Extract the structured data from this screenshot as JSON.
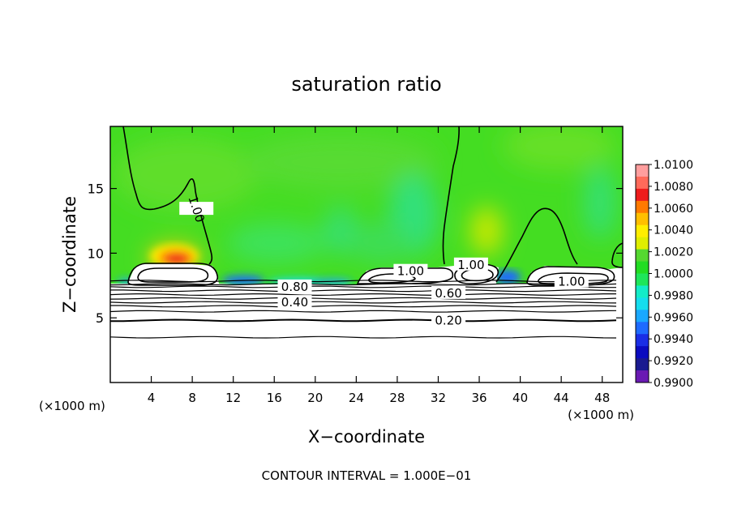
{
  "chart_data": {
    "type": "heatmap",
    "title": "saturation ratio",
    "xlabel": "X−coordinate",
    "ylabel": "Z−coordinate",
    "x_unit_left": "(×1000 m)",
    "x_unit_right": "(×1000 m)",
    "xlim": [
      0,
      50
    ],
    "ylim": [
      0,
      19.8
    ],
    "x_ticks": [
      4,
      8,
      12,
      16,
      20,
      24,
      28,
      32,
      36,
      40,
      44,
      48
    ],
    "y_ticks": [
      5,
      10,
      15
    ],
    "footer": "CONTOUR INTERVAL =  1.000E−01",
    "colorbar": {
      "levels": [
        "1.0100",
        "1.0080",
        "1.0060",
        "1.0040",
        "1.0020",
        "1.0000",
        "0.9980",
        "0.9960",
        "0.9940",
        "0.9920",
        "0.9900"
      ],
      "colors": [
        "#ff9e9e",
        "#ff6a5a",
        "#ee1c1c",
        "#ff7a00",
        "#ffbf00",
        "#ffee00",
        "#dfee00",
        "#55d830",
        "#22dd22",
        "#1ee65a",
        "#13ecc8",
        "#15ddee",
        "#1aa8ff",
        "#1e6bff",
        "#1a2ee6",
        "#0b0bc0",
        "#1a1a90",
        "#6a1ab3"
      ]
    },
    "contour_labels": [
      {
        "text": "1.00",
        "x": 8.4,
        "y": 13.4
      },
      {
        "text": "1.00",
        "x": 29.3,
        "y": 8.6
      },
      {
        "text": "1.00",
        "x": 35.2,
        "y": 9.1
      },
      {
        "text": "1.00",
        "x": 45.0,
        "y": 7.8
      },
      {
        "text": "0.80",
        "x": 18.0,
        "y": 7.4
      },
      {
        "text": "0.60",
        "x": 33.0,
        "y": 6.9
      },
      {
        "text": "0.40",
        "x": 18.0,
        "y": 6.2
      },
      {
        "text": "0.20",
        "x": 33.0,
        "y": 4.8
      }
    ],
    "contour_lines_z": [
      3.5,
      4.8,
      5.5,
      5.9,
      6.2,
      6.5,
      6.8,
      7.1,
      7.4,
      7.6,
      7.85
    ]
  }
}
